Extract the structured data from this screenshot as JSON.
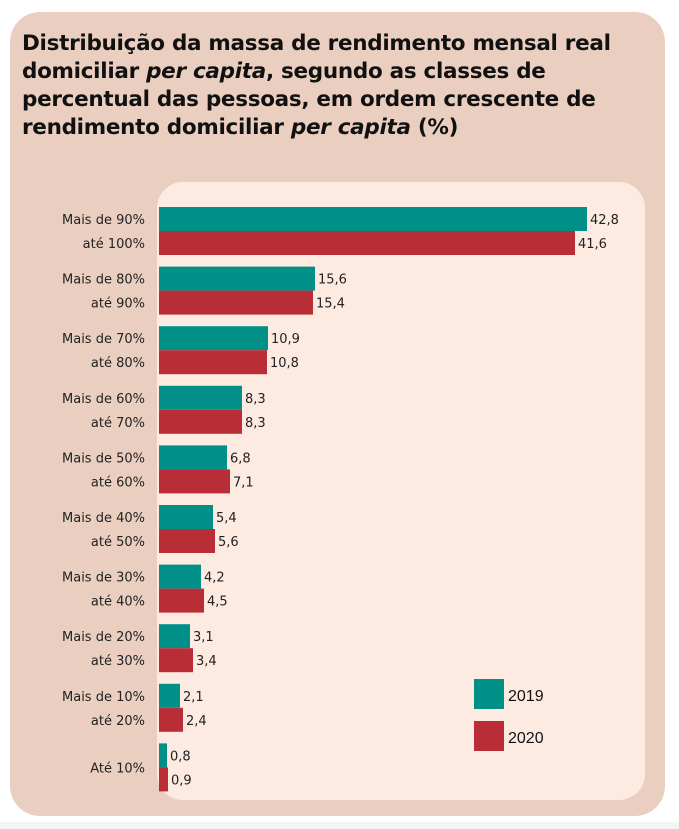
{
  "title": {
    "parts": [
      {
        "text": "Distribuição da massa de rendimento mensal real domiciliar ",
        "italic": false
      },
      {
        "text": "per capita",
        "italic": true
      },
      {
        "text": ", segundo as classes de percentual das pessoas, em ordem crescente de rendimento domiciliar ",
        "italic": false
      },
      {
        "text": "per capita",
        "italic": true
      },
      {
        "text": " (%)",
        "italic": false
      }
    ]
  },
  "colors": {
    "series_2019": "#009088",
    "series_2020": "#b82d36",
    "outer_panel": "#eacfc0",
    "inner_panel": "#fdebe2"
  },
  "chart_data": {
    "type": "bar",
    "orientation": "horizontal",
    "title": "Distribuição da massa de rendimento mensal real domiciliar per capita, segundo as classes de percentual das pessoas, em ordem crescente de rendimento domiciliar per capita (%)",
    "xlabel": "",
    "ylabel": "",
    "xlim": [
      0,
      45
    ],
    "grid": false,
    "legend_position": "bottom-right",
    "categories": [
      [
        "Mais de 90%",
        "até 100%"
      ],
      [
        "Mais de 80%",
        "até 90%"
      ],
      [
        "Mais de 70%",
        "até 80%"
      ],
      [
        "Mais de 60%",
        "até 70%"
      ],
      [
        "Mais de 50%",
        "até 60%"
      ],
      [
        "Mais de 40%",
        "até 50%"
      ],
      [
        "Mais de 30%",
        "até 40%"
      ],
      [
        "Mais de 20%",
        "até 30%"
      ],
      [
        "Mais de 10%",
        "até 20%"
      ],
      [
        "Até 10%"
      ]
    ],
    "series": [
      {
        "name": "2019",
        "values": [
          42.8,
          15.6,
          10.9,
          8.3,
          6.8,
          5.4,
          4.2,
          3.1,
          2.1,
          0.8
        ],
        "labels": [
          "42,8",
          "15,6",
          "10,9",
          "8,3",
          "6,8",
          "5,4",
          "4,2",
          "3,1",
          "2,1",
          "0,8"
        ]
      },
      {
        "name": "2020",
        "values": [
          41.6,
          15.4,
          10.8,
          8.3,
          7.1,
          5.6,
          4.5,
          3.4,
          2.4,
          0.9
        ],
        "labels": [
          "41,6",
          "15,4",
          "10,8",
          "8,3",
          "7,1",
          "5,6",
          "4,5",
          "3,4",
          "2,4",
          "0,9"
        ]
      }
    ]
  }
}
